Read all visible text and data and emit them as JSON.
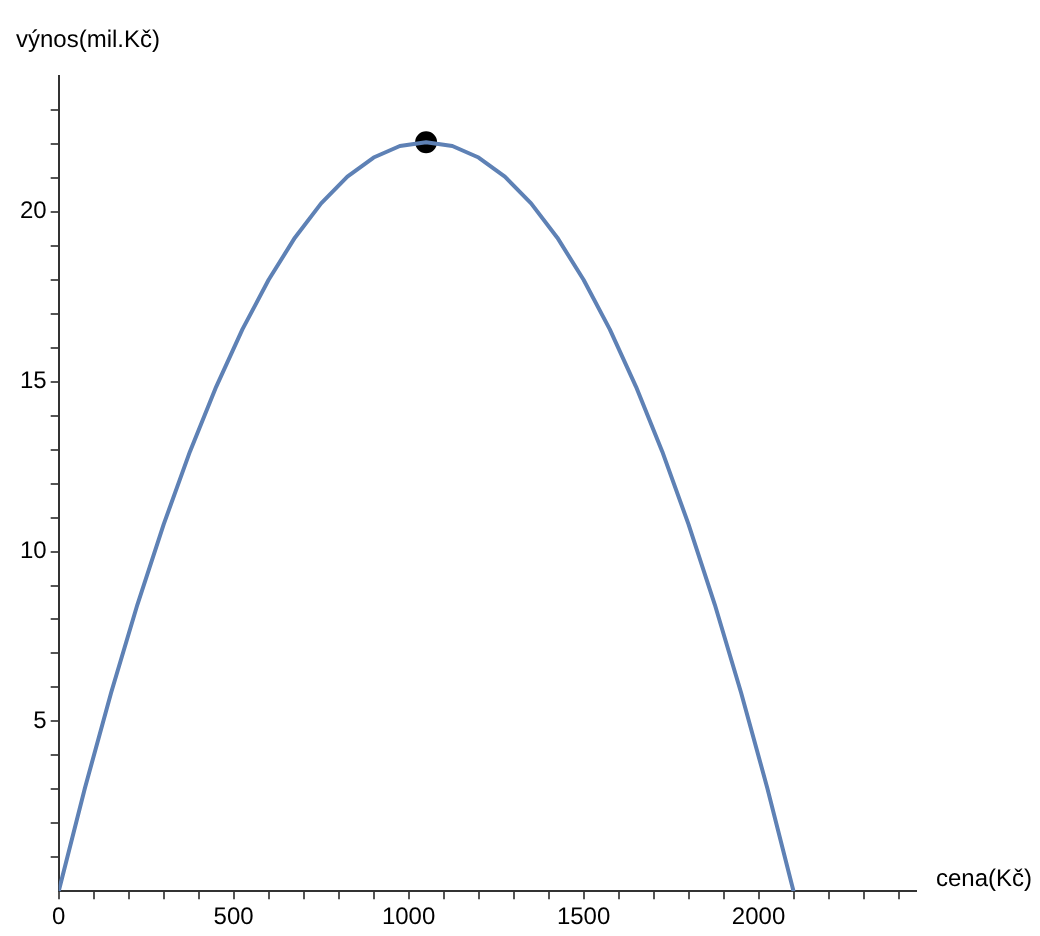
{
  "chart_data": {
    "type": "line",
    "xlabel": "cena(Kč)",
    "ylabel": "výnos(mil.Kč)",
    "legend": false,
    "xlim": [
      0,
      2450
    ],
    "ylim": [
      0,
      24
    ],
    "xticks": [
      0,
      {
        "value": 100,
        "label": null
      },
      {
        "value": 200,
        "label": null
      },
      {
        "value": 300,
        "label": null
      },
      {
        "value": 400,
        "label": null
      },
      500,
      {
        "value": 600,
        "label": null
      },
      {
        "value": 700,
        "label": null
      },
      {
        "value": 800,
        "label": null
      },
      {
        "value": 900,
        "label": null
      },
      1000,
      {
        "value": 1100,
        "label": null
      },
      {
        "value": 1200,
        "label": null
      },
      {
        "value": 1300,
        "label": null
      },
      {
        "value": 1400,
        "label": null
      },
      1500,
      {
        "value": 1600,
        "label": null
      },
      {
        "value": 1700,
        "label": null
      },
      {
        "value": 1800,
        "label": null
      },
      {
        "value": 1900,
        "label": null
      },
      2000,
      {
        "value": 2100,
        "label": null
      },
      {
        "value": 2200,
        "label": null
      },
      {
        "value": 2300,
        "label": null
      },
      {
        "value": 2400,
        "label": null
      }
    ],
    "yticks": [
      {
        "value": 1,
        "label": null
      },
      {
        "value": 2,
        "label": null
      },
      {
        "value": 3,
        "label": null
      },
      {
        "value": 4,
        "label": null
      },
      5,
      {
        "value": 6,
        "label": null
      },
      {
        "value": 7,
        "label": null
      },
      {
        "value": 8,
        "label": null
      },
      {
        "value": 9,
        "label": null
      },
      10,
      {
        "value": 11,
        "label": null
      },
      {
        "value": 12,
        "label": null
      },
      {
        "value": 13,
        "label": null
      },
      {
        "value": 14,
        "label": null
      },
      15,
      {
        "value": 16,
        "label": null
      },
      {
        "value": 17,
        "label": null
      },
      {
        "value": 18,
        "label": null
      },
      {
        "value": 19,
        "label": null
      },
      20,
      {
        "value": 21,
        "label": null
      },
      {
        "value": 22,
        "label": null
      },
      {
        "value": 23,
        "label": null
      }
    ],
    "series": [
      {
        "color": "#5e81b5",
        "marker": "none",
        "line_style": "solid",
        "x": [
          0,
          75,
          150,
          225,
          300,
          375,
          450,
          525,
          600,
          675,
          750,
          825,
          900,
          975,
          1050,
          1125,
          1200,
          1275,
          1350,
          1425,
          1500,
          1575,
          1650,
          1725,
          1800,
          1875,
          1950,
          2025,
          2100
        ],
        "values": [
          0,
          3.04,
          5.85,
          8.44,
          10.8,
          12.94,
          14.85,
          16.54,
          18,
          19.24,
          20.25,
          21.04,
          21.6,
          21.94,
          22.05,
          21.94,
          21.6,
          21.04,
          20.25,
          19.24,
          18,
          16.54,
          14.85,
          12.94,
          10.8,
          8.44,
          5.85,
          3.04,
          0
        ]
      },
      {
        "type": "scatter",
        "color": "#000000",
        "marker": "circle",
        "x": [
          1050
        ],
        "values": [
          22.05
        ]
      }
    ]
  }
}
